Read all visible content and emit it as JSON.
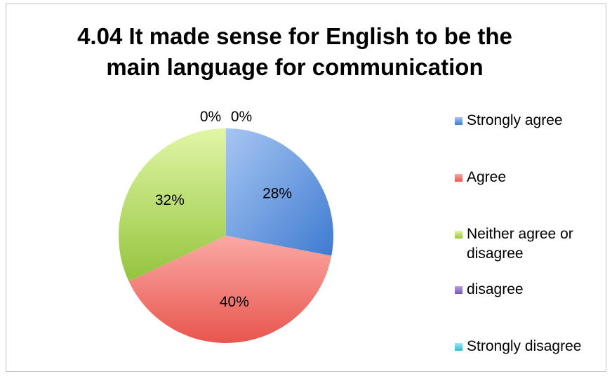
{
  "chart_data": {
    "type": "pie",
    "title_lines": [
      "4.04 It made sense for English to be the",
      "main language for communication"
    ],
    "categories": [
      "Strongly agree",
      "Agree",
      "Neither agree or disagree",
      "disagree",
      "Strongly disagree"
    ],
    "values": [
      28,
      40,
      32,
      0,
      0
    ],
    "data_labels": [
      "28%",
      "40%",
      "32%",
      "0%",
      "0%"
    ],
    "colors": [
      "#5b8fd8",
      "#f0706a",
      "#b6dc6a",
      "#8e70c0",
      "#4fc8dc"
    ],
    "legend_position": "right"
  },
  "legend": {
    "items": [
      {
        "label_line1": "Strongly agree",
        "label_line2": ""
      },
      {
        "label_line1": "Agree",
        "label_line2": ""
      },
      {
        "label_line1": "Neither agree or",
        "label_line2": "disagree"
      },
      {
        "label_line1": "disagree",
        "label_line2": ""
      },
      {
        "label_line1": "Strongly disagree",
        "label_line2": ""
      }
    ]
  }
}
